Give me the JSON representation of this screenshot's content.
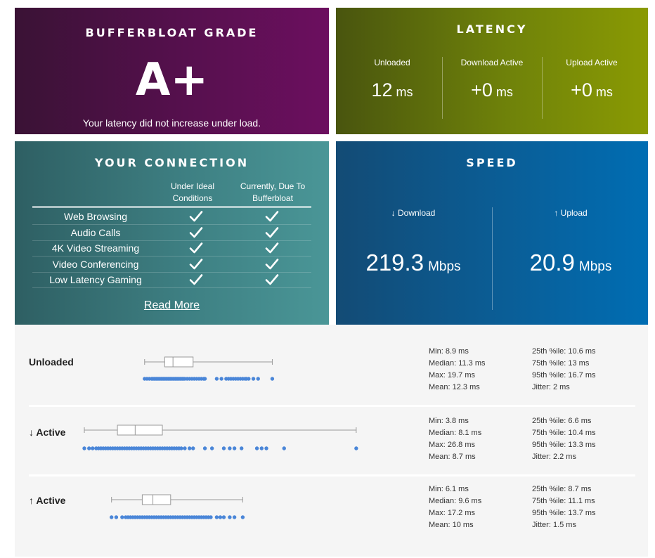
{
  "grade": {
    "title": "BUFFERBLOAT GRADE",
    "value": "A+",
    "description": "Your latency did not increase under load."
  },
  "latency": {
    "title": "LATENCY",
    "columns": [
      {
        "label": "Unloaded",
        "value": "12",
        "unit": "ms"
      },
      {
        "label": "Download Active",
        "value": "+0",
        "unit": "ms"
      },
      {
        "label": "Upload Active",
        "value": "+0",
        "unit": "ms"
      }
    ]
  },
  "connection": {
    "title": "YOUR CONNECTION",
    "col_ideal": "Under Ideal Conditions",
    "col_current": "Currently, Due To Bufferbloat",
    "rows": [
      {
        "label": "Web Browsing",
        "ideal": true,
        "current": true
      },
      {
        "label": "Audio Calls",
        "ideal": true,
        "current": true
      },
      {
        "label": "4K Video Streaming",
        "ideal": true,
        "current": true
      },
      {
        "label": "Video Conferencing",
        "ideal": true,
        "current": true
      },
      {
        "label": "Low Latency Gaming",
        "ideal": true,
        "current": true
      }
    ],
    "read_more": "Read More"
  },
  "speed": {
    "title": "SPEED",
    "download": {
      "label": "↓ Download",
      "value": "219.3",
      "unit": "Mbps"
    },
    "upload": {
      "label": "↑ Upload",
      "value": "20.9",
      "unit": "Mbps"
    }
  },
  "colors": {
    "point": "#4a86d8",
    "box": "#999999"
  },
  "details": [
    {
      "label": "Unloaded",
      "stats_left": [
        "Min: 8.9 ms",
        "Median: 11.3 ms",
        "Max: 19.7 ms",
        "Mean: 12.3 ms"
      ],
      "stats_right": [
        "25th %ile: 10.6 ms",
        "75th %ile: 13 ms",
        "95th %ile: 16.7 ms",
        "Jitter: 2 ms"
      ],
      "box": {
        "min": 8.9,
        "q1": 10.6,
        "median": 11.3,
        "q3": 13,
        "max": 19.7
      },
      "points": [
        8.9,
        9.1,
        9.3,
        9.5,
        9.6,
        9.7,
        9.8,
        9.9,
        10.0,
        10.1,
        10.2,
        10.3,
        10.4,
        10.5,
        10.6,
        10.7,
        10.8,
        10.9,
        11.0,
        11.1,
        11.2,
        11.3,
        11.4,
        11.5,
        11.6,
        11.7,
        11.8,
        11.9,
        12.0,
        12.1,
        12.2,
        12.3,
        12.5,
        12.7,
        12.9,
        13.1,
        13.3,
        13.5,
        13.7,
        13.9,
        14.0,
        15.0,
        15.4,
        15.8,
        16.0,
        16.2,
        16.4,
        16.6,
        16.8,
        17.0,
        17.2,
        17.4,
        17.5,
        17.7,
        18.1,
        18.5,
        19.7
      ]
    },
    {
      "label": "↓ Active",
      "stats_left": [
        "Min: 3.8 ms",
        "Median: 8.1 ms",
        "Max: 26.8 ms",
        "Mean: 8.7 ms"
      ],
      "stats_right": [
        "25th %ile: 6.6 ms",
        "75th %ile: 10.4 ms",
        "95th %ile: 13.3 ms",
        "Jitter: 2.2 ms"
      ],
      "box": {
        "min": 3.8,
        "q1": 6.6,
        "median": 8.1,
        "q3": 10.4,
        "max": 26.8
      },
      "points": [
        3.8,
        4.2,
        4.5,
        4.8,
        5.0,
        5.2,
        5.4,
        5.6,
        5.8,
        6.0,
        6.2,
        6.4,
        6.6,
        6.8,
        7.0,
        7.2,
        7.4,
        7.6,
        7.8,
        8.0,
        8.2,
        8.4,
        8.6,
        8.8,
        9.0,
        9.2,
        9.4,
        9.6,
        9.8,
        10.0,
        10.2,
        10.4,
        10.6,
        10.8,
        11.0,
        11.2,
        11.4,
        11.6,
        11.8,
        12.0,
        12.3,
        12.7,
        13.0,
        14.0,
        14.6,
        15.6,
        16.1,
        16.5,
        17.1,
        18.4,
        18.8,
        19.2,
        20.7,
        26.8
      ]
    },
    {
      "label": "↑ Active",
      "stats_left": [
        "Min: 6.1 ms",
        "Median: 9.6 ms",
        "Max: 17.2 ms",
        "Mean: 10 ms"
      ],
      "stats_right": [
        "25th %ile: 8.7 ms",
        "75th %ile: 11.1 ms",
        "95th %ile: 13.7 ms",
        "Jitter: 1.5 ms"
      ],
      "box": {
        "min": 6.1,
        "q1": 8.7,
        "median": 9.6,
        "q3": 11.1,
        "max": 17.2
      },
      "points": [
        6.1,
        6.5,
        7.0,
        7.3,
        7.5,
        7.7,
        7.9,
        8.1,
        8.3,
        8.5,
        8.7,
        8.9,
        9.1,
        9.3,
        9.5,
        9.7,
        9.9,
        10.1,
        10.3,
        10.5,
        10.7,
        10.9,
        11.1,
        11.3,
        11.5,
        11.7,
        11.9,
        12.1,
        12.3,
        12.5,
        12.7,
        12.9,
        13.1,
        13.3,
        13.5,
        13.7,
        13.9,
        14.1,
        14.3,
        14.5,
        15.0,
        15.3,
        15.6,
        16.1,
        16.5,
        17.2
      ]
    }
  ]
}
